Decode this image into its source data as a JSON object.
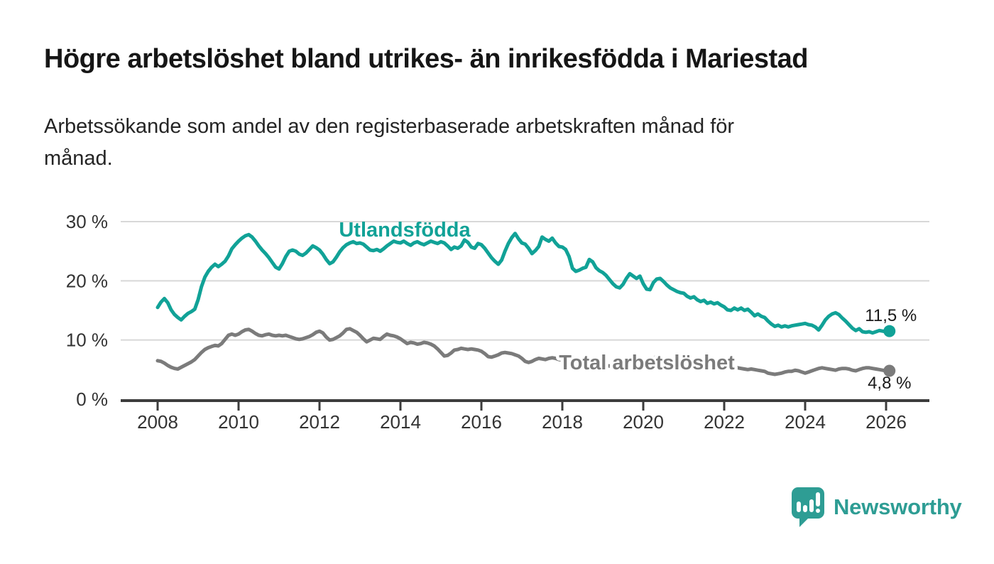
{
  "header": {
    "title": "Högre arbetslöshet bland utrikes- än inrikesfödda i Mariestad",
    "subtitle_lines": [
      "Arbetssökande som andel av den registerbaserade arbetskraften månad för",
      "månad."
    ]
  },
  "branding": {
    "logo_text": "Newsworthy",
    "logo_color": "#2E9D94"
  },
  "chart_data": {
    "type": "line",
    "title": "Högre arbetslöshet bland utrikes- än inrikesfödda i Mariestad",
    "subtitle": "Arbetssökande som andel av den registerbaserade arbetskraften månad för månad.",
    "grid": "horizontal",
    "legend_position": "inline-labels",
    "x_axis": {
      "start_year": 2008.0,
      "step_years": 0.0833333,
      "ticks": [
        2008,
        2010,
        2012,
        2014,
        2016,
        2018,
        2020,
        2022,
        2024,
        2026
      ]
    },
    "y_axis": {
      "tick_values": [
        0,
        10,
        20,
        30
      ],
      "tick_labels": [
        "0 %",
        "10 %",
        "20 %",
        "30 %"
      ],
      "min": 0,
      "max": 30,
      "unit": "%"
    },
    "series": [
      {
        "name": "Utlandsfödda",
        "color": "#11A297",
        "end_label": "11,5 %",
        "end_value": 11.5,
        "values": [
          15.5,
          16.4,
          17.0,
          16.3,
          15.1,
          14.3,
          13.8,
          13.4,
          14.0,
          14.5,
          14.8,
          15.2,
          16.8,
          19.0,
          20.6,
          21.6,
          22.3,
          22.8,
          22.4,
          22.8,
          23.3,
          24.2,
          25.4,
          26.1,
          26.7,
          27.2,
          27.6,
          27.8,
          27.4,
          26.7,
          25.9,
          25.2,
          24.6,
          23.9,
          23.1,
          22.3,
          22.0,
          22.9,
          24.1,
          25.0,
          25.2,
          25.0,
          24.5,
          24.3,
          24.7,
          25.3,
          25.9,
          25.6,
          25.2,
          24.5,
          23.6,
          22.9,
          23.2,
          24.0,
          24.9,
          25.6,
          26.1,
          26.4,
          26.6,
          26.3,
          26.4,
          26.2,
          25.7,
          25.2,
          25.1,
          25.3,
          25.0,
          25.4,
          25.9,
          26.3,
          26.7,
          26.5,
          26.4,
          26.7,
          26.3,
          26.0,
          26.4,
          26.6,
          26.3,
          26.1,
          26.4,
          26.7,
          26.5,
          26.3,
          26.6,
          26.4,
          25.9,
          25.3,
          25.7,
          25.5,
          25.9,
          26.9,
          26.5,
          25.7,
          25.5,
          26.3,
          26.1,
          25.5,
          24.7,
          23.9,
          23.3,
          22.8,
          23.5,
          25.0,
          26.3,
          27.3,
          28.0,
          27.1,
          26.4,
          26.2,
          25.5,
          24.6,
          25.1,
          25.8,
          27.4,
          27.0,
          26.7,
          27.2,
          26.4,
          25.8,
          25.7,
          25.3,
          24.1,
          22.1,
          21.6,
          21.8,
          22.1,
          22.3,
          23.6,
          23.2,
          22.2,
          21.7,
          21.4,
          20.9,
          20.2,
          19.5,
          19.0,
          18.8,
          19.4,
          20.4,
          21.2,
          20.8,
          20.4,
          20.8,
          19.5,
          18.6,
          18.5,
          19.7,
          20.3,
          20.4,
          19.9,
          19.3,
          18.8,
          18.5,
          18.2,
          18.0,
          17.9,
          17.4,
          17.1,
          17.3,
          16.8,
          16.5,
          16.7,
          16.2,
          16.4,
          16.1,
          16.3,
          15.9,
          15.6,
          15.1,
          15.0,
          15.4,
          15.1,
          15.4,
          15.0,
          15.2,
          14.7,
          14.1,
          14.4,
          14.0,
          13.8,
          13.2,
          12.7,
          12.3,
          12.5,
          12.2,
          12.4,
          12.2,
          12.4,
          12.5,
          12.6,
          12.7,
          12.8,
          12.6,
          12.5,
          12.2,
          11.7,
          12.5,
          13.4,
          14.0,
          14.4,
          14.6,
          14.3,
          13.7,
          13.2,
          12.6,
          12.0,
          11.6,
          11.9,
          11.4,
          11.3,
          11.4,
          11.2,
          11.4,
          11.6,
          11.5,
          11.4,
          11.5
        ]
      },
      {
        "name": "Total arbetslöshet",
        "color": "#7B7B7B",
        "end_label": "4,8 %",
        "end_value": 4.8,
        "values": [
          6.5,
          6.4,
          6.1,
          5.7,
          5.4,
          5.2,
          5.1,
          5.4,
          5.7,
          6.0,
          6.3,
          6.7,
          7.3,
          7.9,
          8.4,
          8.7,
          8.9,
          9.1,
          9.0,
          9.4,
          10.1,
          10.8,
          11.0,
          10.8,
          11.0,
          11.4,
          11.7,
          11.8,
          11.5,
          11.1,
          10.8,
          10.7,
          10.9,
          11.0,
          10.8,
          10.7,
          10.8,
          10.7,
          10.8,
          10.6,
          10.4,
          10.2,
          10.1,
          10.2,
          10.4,
          10.6,
          10.9,
          11.3,
          11.5,
          11.2,
          10.5,
          10.0,
          10.1,
          10.4,
          10.7,
          11.2,
          11.8,
          11.9,
          11.6,
          11.3,
          10.8,
          10.2,
          9.7,
          10.0,
          10.3,
          10.2,
          10.1,
          10.6,
          11.0,
          10.8,
          10.7,
          10.5,
          10.2,
          9.8,
          9.4,
          9.6,
          9.5,
          9.3,
          9.4,
          9.6,
          9.5,
          9.3,
          9.0,
          8.5,
          7.9,
          7.3,
          7.4,
          7.8,
          8.3,
          8.4,
          8.6,
          8.5,
          8.4,
          8.5,
          8.4,
          8.3,
          8.1,
          7.7,
          7.2,
          7.1,
          7.3,
          7.5,
          7.8,
          7.9,
          7.8,
          7.7,
          7.5,
          7.3,
          6.9,
          6.4,
          6.2,
          6.4,
          6.7,
          6.9,
          6.8,
          6.7,
          6.9,
          7.0,
          6.9,
          6.7,
          6.6,
          6.4,
          6.2,
          6.0,
          5.9,
          5.8,
          5.9,
          6.0,
          6.1,
          6.0,
          5.9,
          5.8,
          5.8,
          5.7,
          5.6,
          5.6,
          5.7,
          5.8,
          5.9,
          6.0,
          6.0,
          5.9,
          5.9,
          5.8,
          5.9,
          6.1,
          6.6,
          7.0,
          7.1,
          7.0,
          6.8,
          6.6,
          6.4,
          6.3,
          6.2,
          6.1,
          6.0,
          5.9,
          5.8,
          5.7,
          5.6,
          5.5,
          5.4,
          5.4,
          5.3,
          5.3,
          5.2,
          5.2,
          5.2,
          5.1,
          5.1,
          5.2,
          5.3,
          5.2,
          5.1,
          5.0,
          5.1,
          5.0,
          4.9,
          4.8,
          4.7,
          4.4,
          4.3,
          4.2,
          4.3,
          4.4,
          4.6,
          4.7,
          4.7,
          4.9,
          4.8,
          4.6,
          4.4,
          4.6,
          4.8,
          5.0,
          5.2,
          5.3,
          5.2,
          5.1,
          5.0,
          4.9,
          5.1,
          5.2,
          5.2,
          5.1,
          4.9,
          4.8,
          5.0,
          5.2,
          5.3,
          5.3,
          5.2,
          5.1,
          5.0,
          4.9,
          4.8,
          4.8
        ]
      }
    ]
  }
}
